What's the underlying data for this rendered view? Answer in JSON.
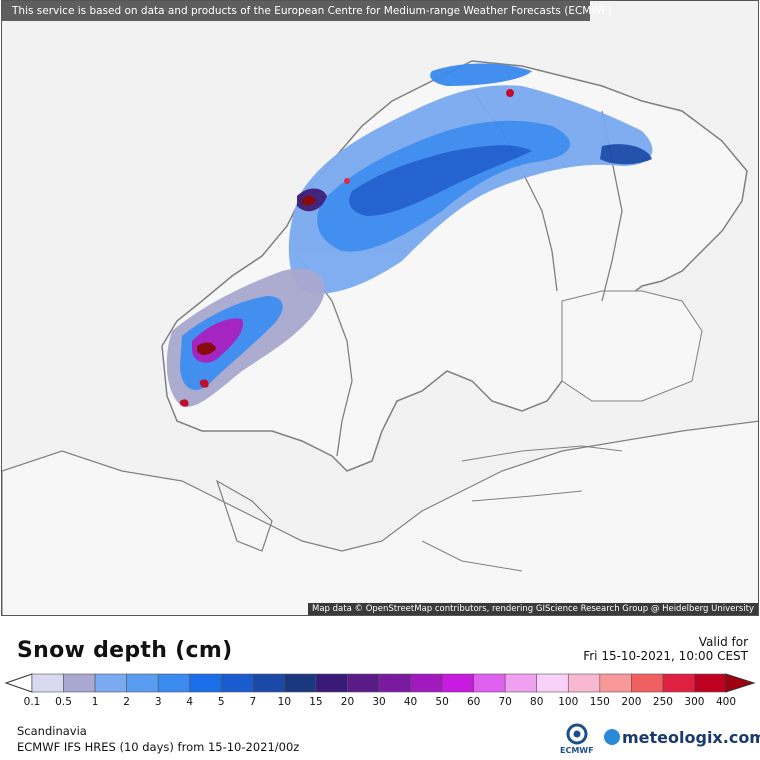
{
  "banner": "This service is based on data and products of the European Centre for Medium-range Weather Forecasts (ECMWF)",
  "attribution": "Map data © OpenStreetMap contributors, rendering GIScience Research Group @ Heidelberg University",
  "title": "Snow depth (cm)",
  "valid_label": "Valid for",
  "valid_time": "Fri 15-10-2021, 10:00 CEST",
  "region": "Scandinavia",
  "model": "ECMWF IFS HRES (10 days) from 15-10-2021/00z",
  "logos": {
    "ecmwf": "ECMWF",
    "meteologix": "meteologix.com"
  },
  "legend": {
    "ticks": [
      "0.1",
      "0.5",
      "1",
      "2",
      "3",
      "4",
      "5",
      "7",
      "10",
      "15",
      "20",
      "30",
      "40",
      "50",
      "60",
      "70",
      "80",
      "100",
      "150",
      "200",
      "250",
      "300",
      "400"
    ],
    "colors": [
      "#d8d8f0",
      "#a8a8d0",
      "#7aaaf0",
      "#5a9cf0",
      "#3a8af0",
      "#1a6ee8",
      "#1a5cd0",
      "#1a4aa8",
      "#1a3880",
      "#3a1a78",
      "#5a1a88",
      "#7a1aa0",
      "#a01ac0",
      "#c81ae0",
      "#e060f0",
      "#f0a0f0",
      "#f8d0f8",
      "#f8b8d0",
      "#f89898",
      "#f06060",
      "#e02040",
      "#c00020",
      "#a00010",
      "#800000",
      "#600010"
    ]
  },
  "colors": {
    "banner_bg": "#5e5e5e",
    "map_bg": "#f2f2f2",
    "border": "#808080"
  }
}
